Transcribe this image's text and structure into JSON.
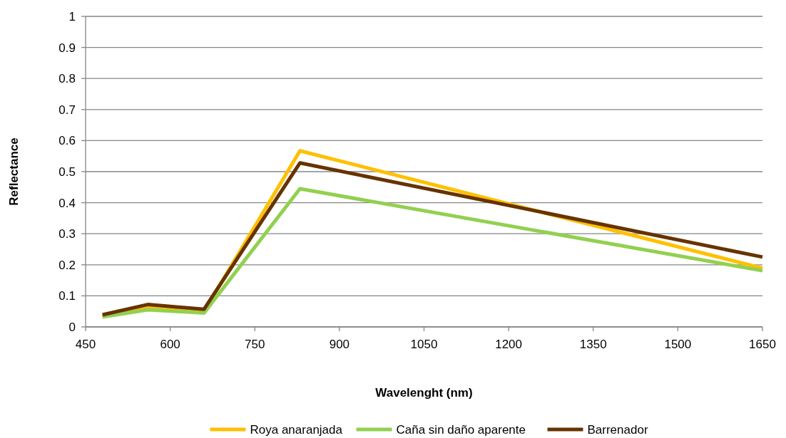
{
  "chart_data": {
    "type": "line",
    "xlabel": "Wavelenght (nm)",
    "ylabel": "Reflectance",
    "x": [
      480,
      560,
      660,
      830,
      1650
    ],
    "series": [
      {
        "name": "Roya anaranjada",
        "color": "#ffc000",
        "values": [
          0.035,
          0.065,
          0.05,
          0.567,
          0.189
        ]
      },
      {
        "name": "Caña sin daño aparente",
        "color": "#92d050",
        "values": [
          0.032,
          0.055,
          0.045,
          0.445,
          0.181
        ]
      },
      {
        "name": "Barrenador",
        "color": "#663300",
        "values": [
          0.039,
          0.072,
          0.057,
          0.528,
          0.225
        ]
      }
    ],
    "xlim": [
      450,
      1650
    ],
    "xticks": [
      450,
      600,
      750,
      900,
      1050,
      1200,
      1350,
      1500,
      1650
    ],
    "ylim": [
      0,
      1
    ],
    "yticks": [
      0,
      0.1,
      0.2,
      0.3,
      0.4,
      0.5,
      0.6,
      0.7,
      0.8,
      0.9,
      1
    ],
    "grid": "y",
    "legend": "bottom",
    "line_style": "solid"
  }
}
